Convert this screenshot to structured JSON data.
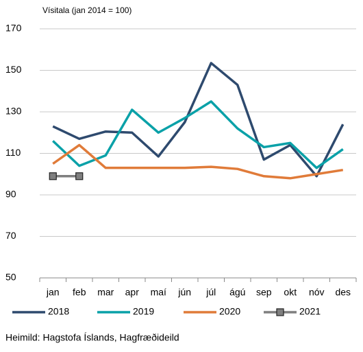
{
  "chart_data": {
    "type": "line",
    "y_axis_label": "Vísitala (jan 2014 = 100)",
    "source": "Heimild: Hagstofa Íslands, Hagfræðideild",
    "categories": [
      "jan",
      "feb",
      "mar",
      "apr",
      "maí",
      "jún",
      "júl",
      "ágú",
      "sep",
      "okt",
      "nóv",
      "des"
    ],
    "ylim": [
      50,
      170
    ],
    "yticks": [
      50,
      70,
      90,
      110,
      130,
      150,
      170
    ],
    "grid": true,
    "legend": "bottom",
    "series": [
      {
        "name": "2018",
        "color": "#2e4a6e",
        "values": [
          123,
          117,
          120.5,
          120,
          108.5,
          125,
          153.5,
          143,
          107,
          114,
          99,
          124
        ]
      },
      {
        "name": "2019",
        "color": "#0aa1a8",
        "values": [
          116,
          104,
          109,
          131,
          120,
          127,
          135,
          122,
          113,
          115,
          103,
          112
        ]
      },
      {
        "name": "2020",
        "color": "#e07b39",
        "values": [
          105,
          114,
          103,
          103,
          103,
          103,
          103.5,
          102.5,
          99,
          98,
          100,
          102
        ]
      },
      {
        "name": "2021",
        "color": "#7f7f7f",
        "marker": "square",
        "values": [
          99,
          99,
          null,
          null,
          null,
          null,
          null,
          null,
          null,
          null,
          null,
          null
        ]
      }
    ]
  }
}
